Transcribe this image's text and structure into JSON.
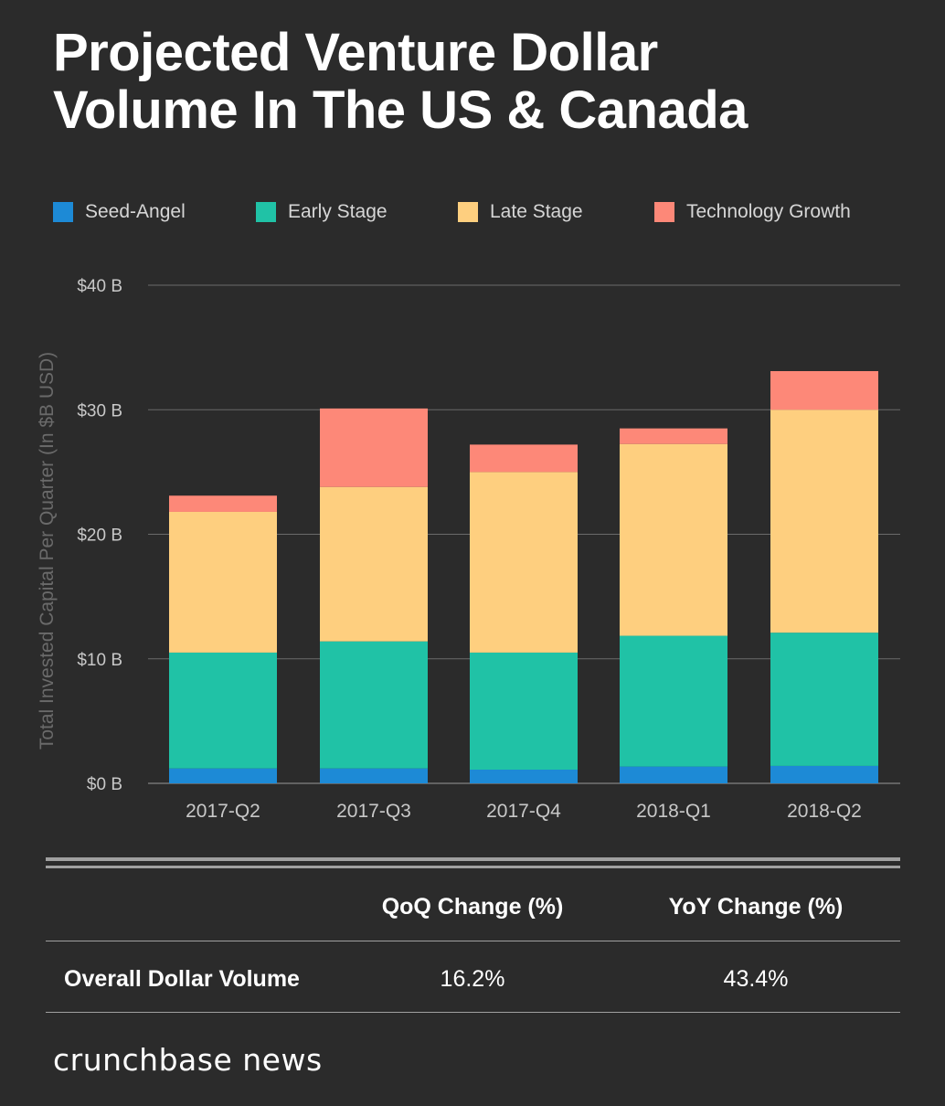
{
  "title_line1": "Projected Venture Dollar",
  "title_line2": "Volume In The US & Canada",
  "colors": {
    "seed_angel": "#1d8ad6",
    "early_stage": "#20c2a6",
    "late_stage": "#fecf7f",
    "technology_growth": "#fd8878",
    "background": "#2b2b2b",
    "gridline": "#6b6b6b",
    "axis_text": "#c8c8c8"
  },
  "chart_data": {
    "type": "bar",
    "stacked": true,
    "title": "Projected Venture Dollar Volume In The US & Canada",
    "xlabel": "",
    "ylabel": "Total Invested Capital Per Quarter (In $B USD)",
    "ylim": [
      0,
      40
    ],
    "yticks": [
      0,
      10,
      20,
      30,
      40
    ],
    "ytick_labels": [
      "$0 B",
      "$10 B",
      "$20 B",
      "$30 B",
      "$40 B"
    ],
    "grid": true,
    "legend_position": "top",
    "categories": [
      "2017-Q2",
      "2017-Q3",
      "2017-Q4",
      "2018-Q1",
      "2018-Q2"
    ],
    "series": [
      {
        "name": "Seed-Angel",
        "color_key": "seed_angel",
        "values": [
          1.2,
          1.2,
          1.1,
          1.35,
          1.4
        ]
      },
      {
        "name": "Early Stage",
        "color_key": "early_stage",
        "values": [
          9.3,
          10.2,
          9.4,
          10.5,
          10.7
        ]
      },
      {
        "name": "Late Stage",
        "color_key": "late_stage",
        "values": [
          11.3,
          12.4,
          14.5,
          15.4,
          17.9
        ]
      },
      {
        "name": "Technology Growth",
        "color_key": "technology_growth",
        "values": [
          1.3,
          6.3,
          2.2,
          1.25,
          3.1
        ]
      }
    ]
  },
  "table": {
    "headers": [
      "QoQ Change (%)",
      "YoY Change (%)"
    ],
    "row_label": "Overall Dollar Volume",
    "values": [
      "16.2%",
      "43.4%"
    ]
  },
  "footer": {
    "brand": "crunchbase news"
  }
}
